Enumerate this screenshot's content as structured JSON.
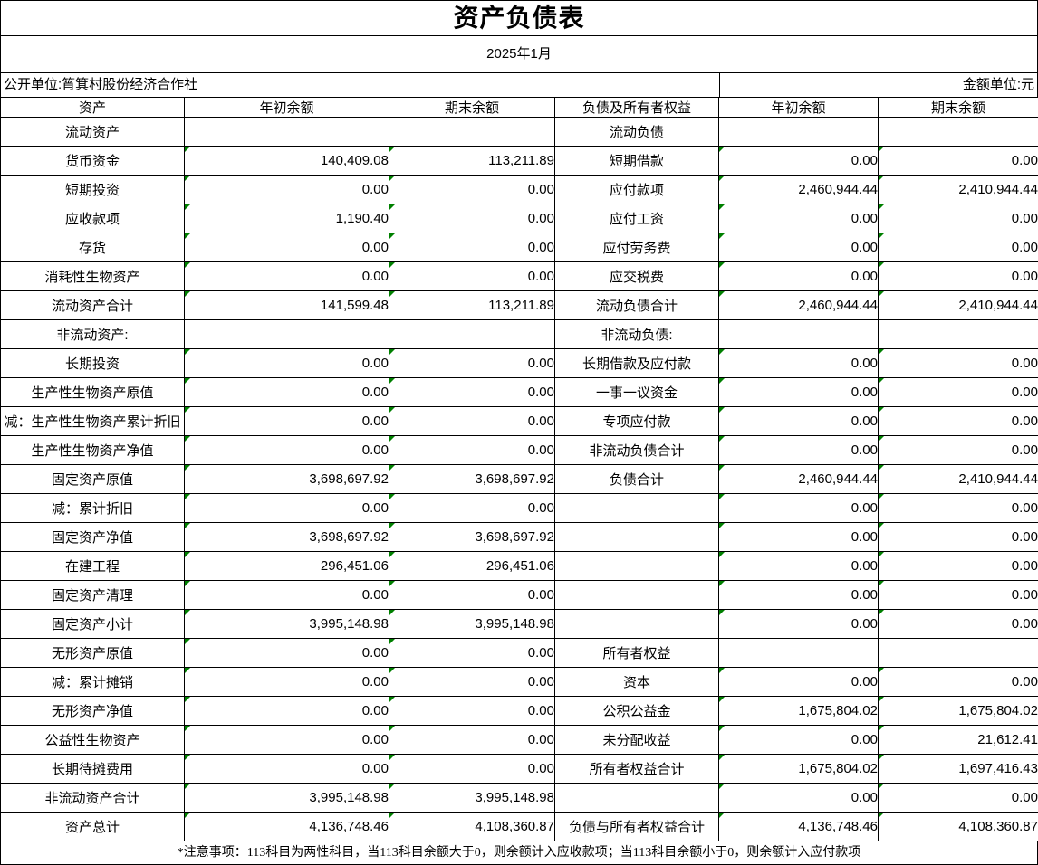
{
  "title": "资产负债表",
  "subtitle": "2025年1月",
  "meta": {
    "unit_label": "公开单位:筲箕村股份经济合作社",
    "currency_label": "金额单位:元"
  },
  "flag_color": "#008000",
  "table": {
    "headers": [
      "资产",
      "年初余额",
      "期末余额",
      "负债及所有者权益",
      "年初余额",
      "期末余额"
    ],
    "rows": [
      [
        "流动资产",
        "",
        "",
        "流动负债",
        "",
        ""
      ],
      [
        "货币资金",
        "140,409.08",
        "113,211.89",
        "短期借款",
        "0.00",
        "0.00"
      ],
      [
        "短期投资",
        "0.00",
        "0.00",
        "应付款项",
        "2,460,944.44",
        "2,410,944.44"
      ],
      [
        "应收款项",
        "1,190.40",
        "0.00",
        "应付工资",
        "0.00",
        "0.00"
      ],
      [
        "存货",
        "0.00",
        "0.00",
        "应付劳务费",
        "0.00",
        "0.00"
      ],
      [
        "消耗性生物资产",
        "0.00",
        "0.00",
        "应交税费",
        "0.00",
        "0.00"
      ],
      [
        "流动资产合计",
        "141,599.48",
        "113,211.89",
        "流动负债合计",
        "2,460,944.44",
        "2,410,944.44"
      ],
      [
        "非流动资产:",
        "",
        "",
        "非流动负债:",
        "",
        ""
      ],
      [
        "长期投资",
        "0.00",
        "0.00",
        "长期借款及应付款",
        "0.00",
        "0.00"
      ],
      [
        "生产性生物资产原值",
        "0.00",
        "0.00",
        "一事一议资金",
        "0.00",
        "0.00"
      ],
      [
        "减：生产性生物资产累计折旧",
        "0.00",
        "0.00",
        "专项应付款",
        "0.00",
        "0.00"
      ],
      [
        "生产性生物资产净值",
        "0.00",
        "0.00",
        "非流动负债合计",
        "0.00",
        "0.00"
      ],
      [
        "固定资产原值",
        "3,698,697.92",
        "3,698,697.92",
        "负债合计",
        "2,460,944.44",
        "2,410,944.44"
      ],
      [
        "减：累计折旧",
        "0.00",
        "0.00",
        "",
        "0.00",
        "0.00"
      ],
      [
        "固定资产净值",
        "3,698,697.92",
        "3,698,697.92",
        "",
        "0.00",
        "0.00"
      ],
      [
        "在建工程",
        "296,451.06",
        "296,451.06",
        "",
        "0.00",
        "0.00"
      ],
      [
        "固定资产清理",
        "0.00",
        "0.00",
        "",
        "0.00",
        "0.00"
      ],
      [
        "固定资产小计",
        "3,995,148.98",
        "3,995,148.98",
        "",
        "0.00",
        "0.00"
      ],
      [
        "无形资产原值",
        "0.00",
        "0.00",
        "所有者权益",
        "",
        ""
      ],
      [
        "减：累计摊销",
        "0.00",
        "0.00",
        "资本",
        "0.00",
        "0.00"
      ],
      [
        "无形资产净值",
        "0.00",
        "0.00",
        "公积公益金",
        "1,675,804.02",
        "1,675,804.02"
      ],
      [
        "公益性生物资产",
        "0.00",
        "0.00",
        "未分配收益",
        "0.00",
        "21,612.41"
      ],
      [
        "长期待摊费用",
        "0.00",
        "0.00",
        "所有者权益合计",
        "1,675,804.02",
        "1,697,416.43"
      ],
      [
        "非流动资产合计",
        "3,995,148.98",
        "3,995,148.98",
        "",
        "0.00",
        "0.00"
      ],
      [
        "资产总计",
        "4,136,748.46",
        "4,108,360.87",
        "负债与所有者权益合计",
        "4,136,748.46",
        "4,108,360.87"
      ]
    ]
  },
  "footer_note": "*注意事项：113科目为两性科目，当113科目余额大于0，则余额计入应收款项；当113科目余额小于0，则余额计入应付款项"
}
